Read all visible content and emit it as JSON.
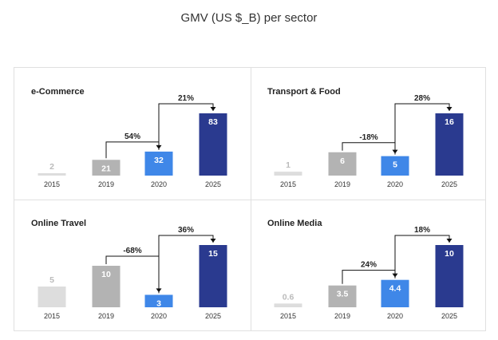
{
  "title": "GMV (US $_B) per sector",
  "colors": {
    "bar_2015": "#dddddd",
    "bar_2019": "#b3b3b3",
    "bar_2020": "#3f87e8",
    "bar_2025": "#2a3a8f",
    "label_light": "#bbbbbb",
    "label_dark": "#ffffff",
    "connector": "#111111"
  },
  "chart_data": [
    {
      "type": "bar",
      "title": "e-Commerce",
      "categories": [
        "2015",
        "2019",
        "2020",
        "2025"
      ],
      "values": [
        2,
        21,
        32,
        83
      ],
      "value_labels": [
        "2",
        "21",
        "32",
        "83"
      ],
      "changes": [
        {
          "from": "2019",
          "to": "2020",
          "label": "54%"
        },
        {
          "from": "2020",
          "to": "2025",
          "label": "21%"
        }
      ]
    },
    {
      "type": "bar",
      "title": "Transport & Food",
      "categories": [
        "2015",
        "2019",
        "2020",
        "2025"
      ],
      "values": [
        1,
        6,
        5,
        16
      ],
      "value_labels": [
        "1",
        "6",
        "5",
        "16"
      ],
      "changes": [
        {
          "from": "2019",
          "to": "2020",
          "label": "-18%"
        },
        {
          "from": "2020",
          "to": "2025",
          "label": "28%"
        }
      ]
    },
    {
      "type": "bar",
      "title": "Online Travel",
      "categories": [
        "2015",
        "2019",
        "2020",
        "2025"
      ],
      "values": [
        5,
        10,
        3,
        15
      ],
      "value_labels": [
        "5",
        "10",
        "3",
        "15"
      ],
      "changes": [
        {
          "from": "2019",
          "to": "2020",
          "label": "-68%"
        },
        {
          "from": "2020",
          "to": "2025",
          "label": "36%"
        }
      ]
    },
    {
      "type": "bar",
      "title": "Online Media",
      "categories": [
        "2015",
        "2019",
        "2020",
        "2025"
      ],
      "values": [
        0.6,
        3.5,
        4.4,
        10
      ],
      "value_labels": [
        "0.6",
        "3.5",
        "4.4",
        "10"
      ],
      "changes": [
        {
          "from": "2019",
          "to": "2020",
          "label": "24%"
        },
        {
          "from": "2020",
          "to": "2025",
          "label": "18%"
        }
      ]
    }
  ]
}
